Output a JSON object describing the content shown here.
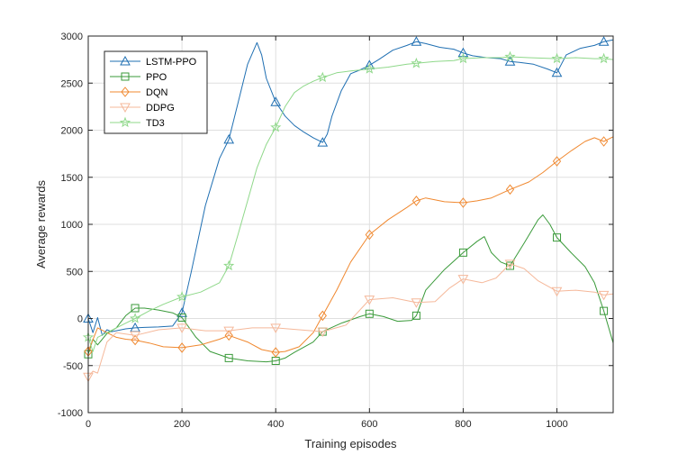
{
  "chart_data": {
    "type": "line",
    "title": "",
    "xlabel": "Training episodes",
    "ylabel": "Average rewards",
    "xlim": [
      0,
      1120
    ],
    "ylim": [
      -1000,
      3000
    ],
    "xticks": [
      0,
      200,
      400,
      600,
      800,
      1000
    ],
    "yticks": [
      -1000,
      -500,
      0,
      500,
      1000,
      1500,
      2000,
      2500,
      3000
    ],
    "grid": true,
    "legend_position": "top-left",
    "series": [
      {
        "name": "LSTM-PPO",
        "color": "#1f6fb2",
        "marker": "triangle",
        "marker_x": [
          0,
          100,
          200,
          300,
          400,
          500,
          600,
          700,
          800,
          900,
          1000,
          1100
        ],
        "x": [
          0,
          10,
          20,
          30,
          40,
          50,
          60,
          80,
          100,
          120,
          150,
          180,
          200,
          220,
          250,
          280,
          300,
          320,
          340,
          360,
          370,
          380,
          400,
          420,
          440,
          460,
          480,
          500,
          510,
          520,
          540,
          560,
          580,
          600,
          620,
          650,
          680,
          700,
          720,
          750,
          780,
          800,
          820,
          850,
          880,
          900,
          920,
          950,
          980,
          1000,
          1020,
          1050,
          1080,
          1100,
          1120
        ],
        "y": [
          0,
          -150,
          10,
          -180,
          -120,
          -140,
          -130,
          -110,
          -100,
          -95,
          -90,
          -80,
          60,
          500,
          1200,
          1700,
          1900,
          2300,
          2700,
          2930,
          2800,
          2550,
          2300,
          2150,
          2050,
          1980,
          1920,
          1870,
          1960,
          2150,
          2420,
          2600,
          2640,
          2690,
          2750,
          2850,
          2900,
          2940,
          2920,
          2880,
          2860,
          2820,
          2790,
          2770,
          2760,
          2730,
          2720,
          2700,
          2650,
          2610,
          2800,
          2870,
          2900,
          2940,
          2960
        ]
      },
      {
        "name": "PPO",
        "color": "#3a9a3a",
        "marker": "square",
        "marker_x": [
          0,
          100,
          200,
          300,
          400,
          500,
          600,
          700,
          800,
          900,
          1000,
          1100
        ],
        "x": [
          0,
          10,
          20,
          40,
          60,
          80,
          100,
          120,
          150,
          180,
          200,
          230,
          260,
          300,
          340,
          380,
          400,
          420,
          440,
          480,
          500,
          540,
          580,
          600,
          630,
          660,
          690,
          700,
          720,
          760,
          800,
          830,
          845,
          860,
          880,
          900,
          930,
          960,
          970,
          985,
          1000,
          1030,
          1060,
          1080,
          1100,
          1120
        ],
        "y": [
          -380,
          -220,
          -280,
          -160,
          -100,
          30,
          110,
          110,
          90,
          60,
          10,
          -200,
          -350,
          -420,
          -450,
          -460,
          -450,
          -420,
          -360,
          -250,
          -140,
          -50,
          20,
          50,
          20,
          -30,
          -20,
          30,
          300,
          520,
          700,
          820,
          870,
          700,
          600,
          560,
          800,
          1050,
          1100,
          1000,
          860,
          700,
          550,
          380,
          80,
          -260
        ]
      },
      {
        "name": "DQN",
        "color": "#f0882f",
        "marker": "diamond",
        "marker_x": [
          0,
          100,
          200,
          300,
          400,
          500,
          600,
          700,
          800,
          900,
          1000,
          1100
        ],
        "x": [
          0,
          20,
          40,
          60,
          80,
          100,
          130,
          160,
          200,
          240,
          280,
          300,
          340,
          370,
          400,
          420,
          450,
          480,
          500,
          530,
          560,
          600,
          640,
          680,
          700,
          720,
          760,
          800,
          830,
          860,
          900,
          940,
          970,
          1000,
          1030,
          1060,
          1080,
          1100,
          1120
        ],
        "y": [
          -350,
          -100,
          -150,
          -200,
          -220,
          -230,
          -260,
          -300,
          -310,
          -280,
          -220,
          -180,
          -250,
          -330,
          -360,
          -350,
          -300,
          -150,
          30,
          300,
          600,
          890,
          1050,
          1180,
          1250,
          1280,
          1240,
          1230,
          1250,
          1280,
          1370,
          1450,
          1550,
          1670,
          1780,
          1880,
          1920,
          1880,
          1930
        ]
      },
      {
        "name": "DDPG",
        "color": "#f5b89a",
        "marker": "triangle-down",
        "marker_x": [
          0,
          100,
          200,
          300,
          400,
          500,
          600,
          700,
          800,
          900,
          1000,
          1100
        ],
        "x": [
          0,
          10,
          20,
          40,
          60,
          100,
          150,
          200,
          250,
          300,
          350,
          400,
          450,
          500,
          550,
          600,
          650,
          700,
          740,
          770,
          800,
          840,
          870,
          900,
          930,
          960,
          1000,
          1040,
          1080,
          1100,
          1120
        ],
        "y": [
          -620,
          -560,
          -580,
          -250,
          -150,
          -180,
          -120,
          -100,
          -130,
          -130,
          -100,
          -100,
          -120,
          -140,
          -70,
          200,
          220,
          170,
          180,
          320,
          420,
          380,
          430,
          580,
          530,
          400,
          290,
          300,
          280,
          250,
          260
        ]
      },
      {
        "name": "TD3",
        "color": "#8fd88a",
        "marker": "pentagram",
        "marker_x": [
          0,
          100,
          200,
          300,
          400,
          500,
          600,
          700,
          800,
          900,
          1000,
          1100
        ],
        "x": [
          0,
          10,
          20,
          40,
          60,
          80,
          100,
          130,
          160,
          200,
          240,
          280,
          300,
          320,
          340,
          360,
          380,
          400,
          420,
          440,
          460,
          480,
          500,
          530,
          560,
          600,
          640,
          680,
          700,
          740,
          780,
          800,
          840,
          880,
          900,
          940,
          1000,
          1040,
          1080,
          1100,
          1120
        ],
        "y": [
          -200,
          -350,
          -200,
          -150,
          -100,
          -50,
          0,
          80,
          150,
          230,
          280,
          380,
          560,
          900,
          1250,
          1600,
          1850,
          2030,
          2250,
          2400,
          2470,
          2520,
          2560,
          2610,
          2630,
          2650,
          2670,
          2700,
          2710,
          2730,
          2740,
          2760,
          2770,
          2770,
          2780,
          2770,
          2760,
          2770,
          2760,
          2760,
          2750
        ]
      }
    ]
  }
}
